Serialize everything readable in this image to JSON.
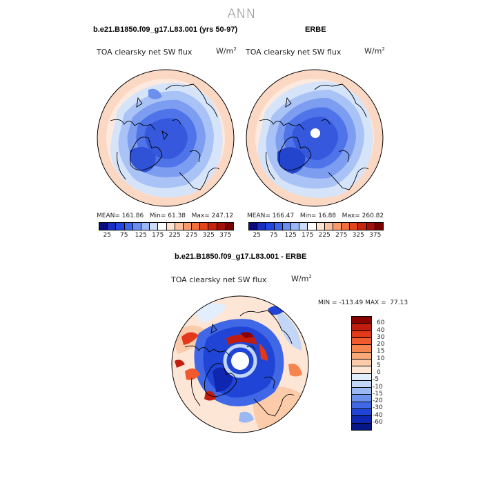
{
  "title": "ANN",
  "panels": {
    "model": {
      "subtitle": "b.e21.B1850.f09_g17.L83.001 (yrs 50-97)",
      "variable": "TOA clearsky net SW flux",
      "units": "W/m",
      "units_exp": "2",
      "stats": {
        "mean_label": "MEAN=",
        "mean": "161.86",
        "min_label": "Min=",
        "min": "61.38",
        "max_label": "Max=",
        "max": "247.12"
      }
    },
    "obs": {
      "subtitle": "ERBE",
      "variable": "TOA clearsky net SW flux",
      "units": "W/m",
      "units_exp": "2",
      "stats": {
        "mean_label": "MEAN=",
        "mean": "166.47",
        "min_label": "Min=",
        "min": "16.88",
        "max_label": "Max=",
        "max": "260.82"
      }
    },
    "diff": {
      "subtitle": "b.e21.B1850.f09_g17.L83.001 - ERBE",
      "variable": "TOA clearsky net SW flux",
      "units": "W/m",
      "units_exp": "2",
      "minmax": {
        "min_label": "MIN =",
        "min": "-113.49",
        "max_label": "MAX =",
        "max": "77.13"
      }
    }
  },
  "colorbars": {
    "absolute": {
      "colors": [
        "#0a0a82",
        "#1a2fc2",
        "#2346e0",
        "#3d66ee",
        "#6b8ef3",
        "#9cb7f6",
        "#ccdcfa",
        "#ffffff",
        "#fde3d2",
        "#fbc0a0",
        "#f89a6c",
        "#f26e3c",
        "#e2471c",
        "#c6250e",
        "#a0110a",
        "#780000"
      ],
      "ticks": [
        "25",
        "75",
        "125",
        "175",
        "225",
        "275",
        "325",
        "375"
      ]
    },
    "difference": {
      "colors": [
        "#8b0000",
        "#c01d0e",
        "#e2391a",
        "#f15a2e",
        "#f6844f",
        "#f9a878",
        "#fbcbaa",
        "#fde6d6",
        "#e3eefc",
        "#c2d6f8",
        "#9ab8f4",
        "#6d92ee",
        "#4068e6",
        "#2045d6",
        "#0f27b0",
        "#061685"
      ],
      "ticks": [
        "60",
        "40",
        "30",
        "20",
        "15",
        "10",
        "5",
        "0",
        "-5",
        "-10",
        "-15",
        "-20",
        "-30",
        "-40",
        "-60"
      ]
    }
  }
}
